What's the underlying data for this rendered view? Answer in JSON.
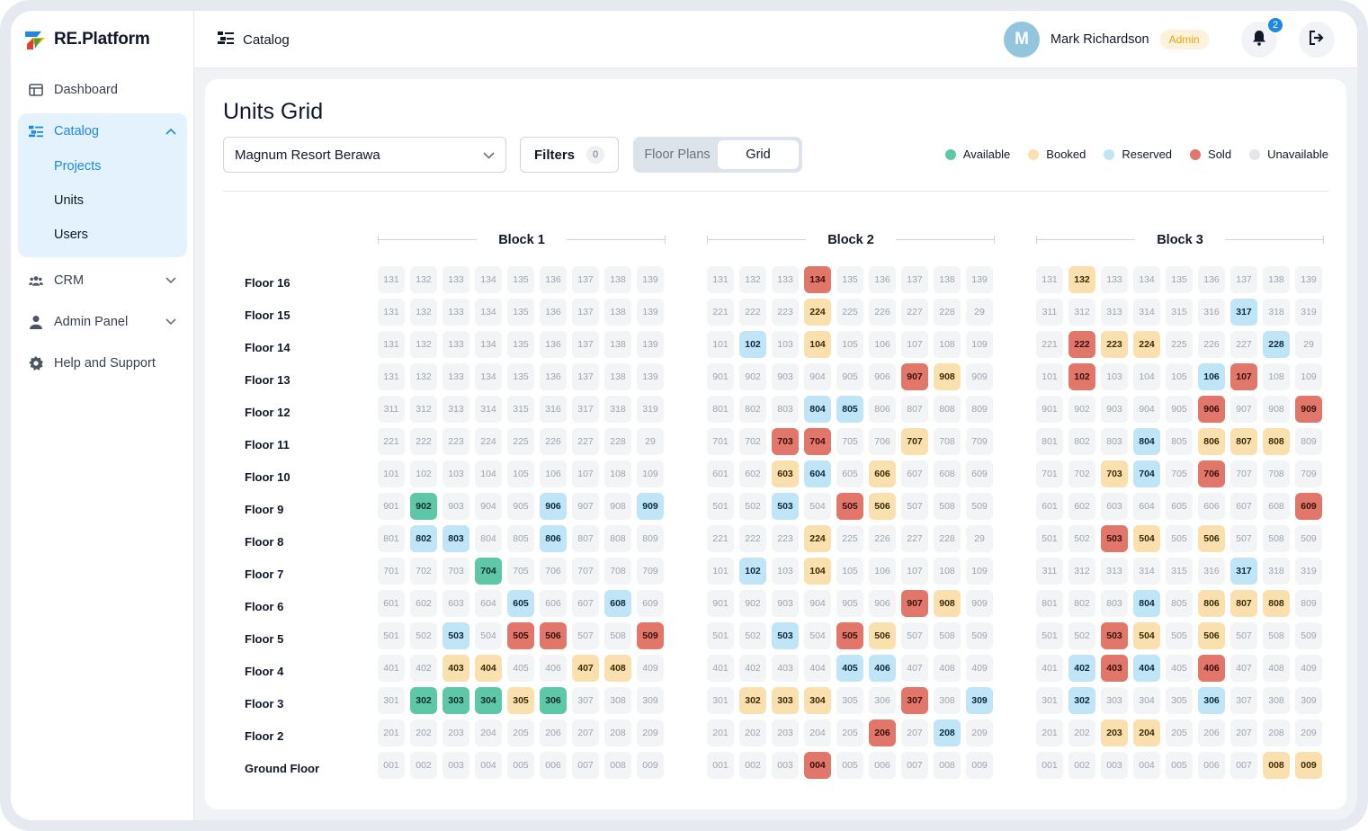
{
  "app": {
    "name": "RE.Platform"
  },
  "sidebar": {
    "items": [
      {
        "label": "Dashboard",
        "icon": "dashboard-icon"
      },
      {
        "label": "Catalog",
        "icon": "catalog-icon",
        "expanded": true,
        "children": [
          {
            "label": "Projects",
            "active": true
          },
          {
            "label": "Units"
          },
          {
            "label": "Users"
          }
        ]
      },
      {
        "label": "CRM",
        "icon": "people-icon"
      },
      {
        "label": "Admin Panel",
        "icon": "person-icon"
      },
      {
        "label": "Help and Support",
        "icon": "gear-icon"
      }
    ]
  },
  "header": {
    "breadcrumb": "Catalog",
    "user": {
      "initial": "M",
      "name": "Mark Richardson",
      "role": "Admin"
    },
    "notifications": "2"
  },
  "main": {
    "title": "Units Grid",
    "project_select": "Magnum Resort Berawa",
    "filters_label": "Filters",
    "filters_count": "0",
    "view_toggle": [
      {
        "label": "Floor Plans"
      },
      {
        "label": "Grid",
        "active": true
      }
    ],
    "legend": [
      {
        "label": "Available",
        "color": "#5ec7a8"
      },
      {
        "label": "Booked",
        "color": "#f9e0ae"
      },
      {
        "label": "Reserved",
        "color": "#bfe5f7"
      },
      {
        "label": "Sold",
        "color": "#e0776a"
      },
      {
        "label": "Unavailable",
        "color": "#e5e7eb"
      }
    ],
    "floors": [
      "Floor 16",
      "Floor 15",
      "Floor 14",
      "Floor 13",
      "Floor 12",
      "Floor 11",
      "Floor 10",
      "Floor 9",
      "Floor 8",
      "Floor 7",
      "Floor 6",
      "Floor 5",
      "Floor 4",
      "Floor 3",
      "Floor 2",
      "Ground Floor"
    ],
    "blocks": [
      {
        "name": "Block 1",
        "rows": [
          "131 132 133 134 135 136 137 138 139",
          "131 132 133 134 135 136 137 138 139",
          "131 132 133 134 135 136 137 138 139",
          "131 132 133 134 135 136 137 138 139",
          "311 312 313 314 315 316 317 318 319",
          "221 222 223 224 225 226 227 228 29",
          "101 102 103 104 105 106 107 108 109",
          "901 902:a 903 904 905 906:r 907 908 909:r",
          "801 802:r 803:r 804 805 806:r 807 808 809",
          "701 702 703 704:a 705 706 707 708 709",
          "601 602 603 604 605:r 606 607 608:r 609",
          "501 502 503:r 504 505:s 506:s 507 508 509:s",
          "401 402 403:b 404:b 405 406 407:b 408:b 409",
          "301 302:a 303:a 304:a 305:b 306:a 307 308 309",
          "201 202 203 204 205 206 207 208 209",
          "001 002 003 004 005 006 007 008 009"
        ]
      },
      {
        "name": "Block 2",
        "rows": [
          "131 132 133 134:s 135 136 137 138 139",
          "221 222 223 224:b 225 226 227 228 29",
          "101 102:r 103 104:b 105 106 107 108 109",
          "901 902 903 904 905 906 907:s 908:b 909",
          "801 802 803 804:r 805:r 806 807 808 809",
          "701 702 703:s 704:s 705 706 707:b 708 709",
          "601 602 603:b 604:r 605 606:b 607 608 609",
          "501 502 503:r 504 505:s 506:b 507 508 509",
          "221 222 223 224:b 225 226 227 228 29",
          "101 102:r 103 104:b 105 106 107 108 109",
          "901 902 903 904 905 906 907:s 908:b 909",
          "501 502 503:r 504 505:s 506:b 507 508 509",
          "401 402 403 404 405:r 406:r 407 408 409",
          "301 302:b 303:b 304:b 305 306 307:s 308 309:r",
          "201 202 203 204 205 206:s 207 208:r 209",
          "001 002 003 004:s 005 006 007 008 009"
        ]
      },
      {
        "name": "Block 3",
        "rows": [
          "131 132:b 133 134 135 136 137 138 139",
          "311 312 313 314 315 316 317:r 318 319",
          "221 222:s 223:b 224:b 225 226 227 228:r 29",
          "101 102:s 103 104 105 106:r 107:s 108 109",
          "901 902 903 904 905 906:s 907 908 909:s",
          "801 802 803 804:r 805 806:b 807:b 808:b 809",
          "701 702 703:b 704:r 705 706:s 707 708 709",
          "601 602 603 604 605 606 607 608 609:s",
          "501 502 503:s 504:b 505 506:b 507 508 509",
          "311 312 313 314 315 316 317:r 318 319",
          "801 802 803 804:r 805 806:b 807:b 808:b 809",
          "501 502 503:s 504:b 505 506:b 507 508 509",
          "401 402:r 403:s 404:r 405 406:s 407 408 409",
          "301 302:r 303 304 305 306:r 307 308 309",
          "201 202 203:b 204:b 205 206 207 208 209",
          "001 002 003 004 005 006 007 008:b 009:b"
        ]
      }
    ]
  }
}
